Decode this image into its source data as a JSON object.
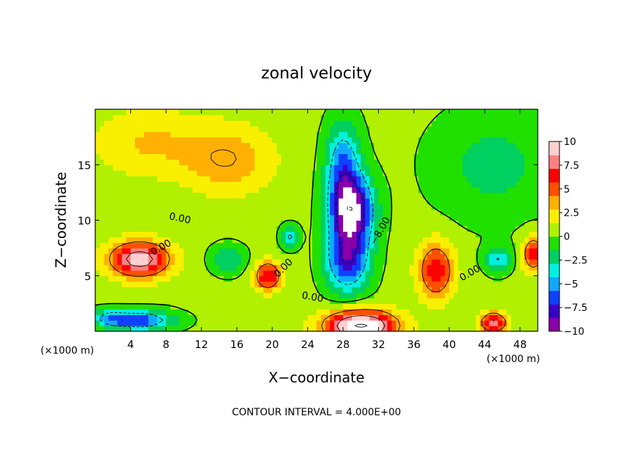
{
  "chart_data": {
    "type": "heatmap",
    "title": "zonal velocity",
    "xlabel": "X−coordinate",
    "ylabel": "Z−coordinate",
    "x_unit_left": "(×1000 m)",
    "x_unit_right": "(×1000 m)",
    "footer": "CONTOUR INTERVAL = 4.000E+00",
    "xlim": [
      0,
      50
    ],
    "ylim": [
      0,
      20
    ],
    "x_ticks": [
      4,
      8,
      12,
      16,
      20,
      24,
      28,
      32,
      36,
      40,
      44,
      48
    ],
    "x_tick_labels": [
      "4",
      "8",
      "12",
      "16",
      "20",
      "24",
      "28",
      "32",
      "36",
      "40",
      "44",
      "48"
    ],
    "y_ticks": [
      5,
      10,
      15
    ],
    "y_tick_labels": [
      "5",
      "10",
      "15"
    ],
    "colorbar": {
      "min": -10,
      "max": 10,
      "ticks": [
        10,
        7.5,
        5,
        2.5,
        0,
        -2.5,
        -5,
        -7.5,
        -10
      ],
      "tick_labels": [
        "10",
        "7.5",
        "5",
        "2.5",
        "0",
        "−2.5",
        "−5",
        "−7.5",
        "−10"
      ],
      "colors": [
        "#8a00a8",
        "#3a00c8",
        "#1040ff",
        "#10a8ff",
        "#00f0e0",
        "#00d060",
        "#20e000",
        "#b0f000",
        "#f8f000",
        "#ffb000",
        "#ff5000",
        "#ff0000",
        "#ff8080",
        "#ffd0d0"
      ]
    },
    "contour_labels": [
      {
        "text": "0.00",
        "x": 9.5,
        "y": 9.9,
        "rot": 12
      },
      {
        "text": "0.00",
        "x": 7.6,
        "y": 7.3,
        "rot": -30
      },
      {
        "text": "0.00",
        "x": 21.5,
        "y": 5.5,
        "rot": -45
      },
      {
        "text": "0.00",
        "x": 24.5,
        "y": 2.8,
        "rot": 10
      },
      {
        "text": "0.00",
        "x": 42.5,
        "y": 5.0,
        "rot": -30
      },
      {
        "text": "−8.00",
        "x": 32.5,
        "y": 8.9,
        "rot": -60
      }
    ],
    "field_features": [
      {
        "value": 3.5,
        "cx": 15,
        "cy": 15.5,
        "sx": 5,
        "sy": 3
      },
      {
        "value": 2.5,
        "cx": 6,
        "cy": 17,
        "sx": 6,
        "sy": 3
      },
      {
        "value": 9,
        "cx": 5,
        "cy": 6.5,
        "sx": 3.5,
        "sy": 1.6
      },
      {
        "value": -10,
        "cx": 29,
        "cy": 11,
        "sx": 2.5,
        "sy": 3
      },
      {
        "value": -8,
        "cx": 28.5,
        "cy": 6.5,
        "sx": 2.5,
        "sy": 3
      },
      {
        "value": -6,
        "cx": 28,
        "cy": 15,
        "sx": 2,
        "sy": 4
      },
      {
        "value": 12,
        "cx": 30,
        "cy": 0.5,
        "sx": 4,
        "sy": 1.4
      },
      {
        "value": 6.5,
        "cx": 38.5,
        "cy": 5.5,
        "sx": 2,
        "sy": 2.5
      },
      {
        "value": 7,
        "cx": 49.5,
        "cy": 7,
        "sx": 1.2,
        "sy": 1.5
      },
      {
        "value": -4.5,
        "cx": 45.5,
        "cy": 6.5,
        "sx": 1.5,
        "sy": 1.2
      },
      {
        "value": -2.5,
        "cx": 45,
        "cy": 15,
        "sx": 7,
        "sy": 5
      },
      {
        "value": 7,
        "cx": 19.5,
        "cy": 5,
        "sx": 1.5,
        "sy": 1.3
      },
      {
        "value": -5,
        "cx": 22,
        "cy": 8.5,
        "sx": 1,
        "sy": 1
      },
      {
        "value": -7,
        "cx": 5,
        "cy": 1,
        "sx": 4,
        "sy": 0.9
      },
      {
        "value": 8,
        "cx": 45,
        "cy": 0.8,
        "sx": 1.5,
        "sy": 0.9
      },
      {
        "value": -3.5,
        "cx": 15,
        "cy": 6.5,
        "sx": 2,
        "sy": 1.3
      },
      {
        "value": -3.5,
        "cx": 1.5,
        "cy": 1.2,
        "sx": 1.8,
        "sy": 0.8
      }
    ]
  }
}
